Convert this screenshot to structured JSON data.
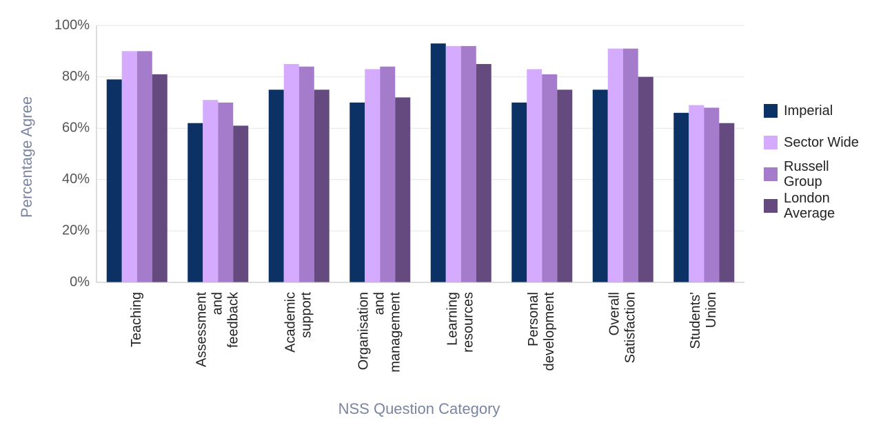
{
  "chart_data": {
    "type": "bar",
    "categories": [
      [
        "Teaching"
      ],
      [
        "Assessment",
        "and",
        "feedback"
      ],
      [
        "Academic",
        "support"
      ],
      [
        "Organisation",
        "and",
        "management"
      ],
      [
        "Learning",
        "resources"
      ],
      [
        "Personal",
        "development"
      ],
      [
        "Overall",
        "Satisfaction"
      ],
      [
        "Students'",
        "Union"
      ]
    ],
    "series": [
      {
        "name": "Imperial",
        "color": "#0c3265",
        "values": [
          79,
          62,
          75,
          70,
          93,
          70,
          75,
          66
        ]
      },
      {
        "name": "Sector Wide",
        "color": "#d4abff",
        "values": [
          90,
          71,
          85,
          83,
          92,
          83,
          91,
          69
        ]
      },
      {
        "name": "Russell Group",
        "color": "#a57ccc",
        "values": [
          90,
          70,
          84,
          84,
          92,
          81,
          91,
          68
        ]
      },
      {
        "name": "London Average",
        "color": "#654a80",
        "values": [
          81,
          61,
          75,
          72,
          85,
          75,
          80,
          62
        ]
      }
    ],
    "xlabel": "NSS Question Category",
    "ylabel": "Percentage Agree",
    "ylim": [
      0,
      100
    ],
    "yticks": [
      {
        "value": 0,
        "label": "0%"
      },
      {
        "value": 20,
        "label": "20%"
      },
      {
        "value": 40,
        "label": "40%"
      },
      {
        "value": 60,
        "label": "60%"
      },
      {
        "value": 80,
        "label": "80%"
      },
      {
        "value": 100,
        "label": "100%"
      }
    ],
    "grid": true
  }
}
